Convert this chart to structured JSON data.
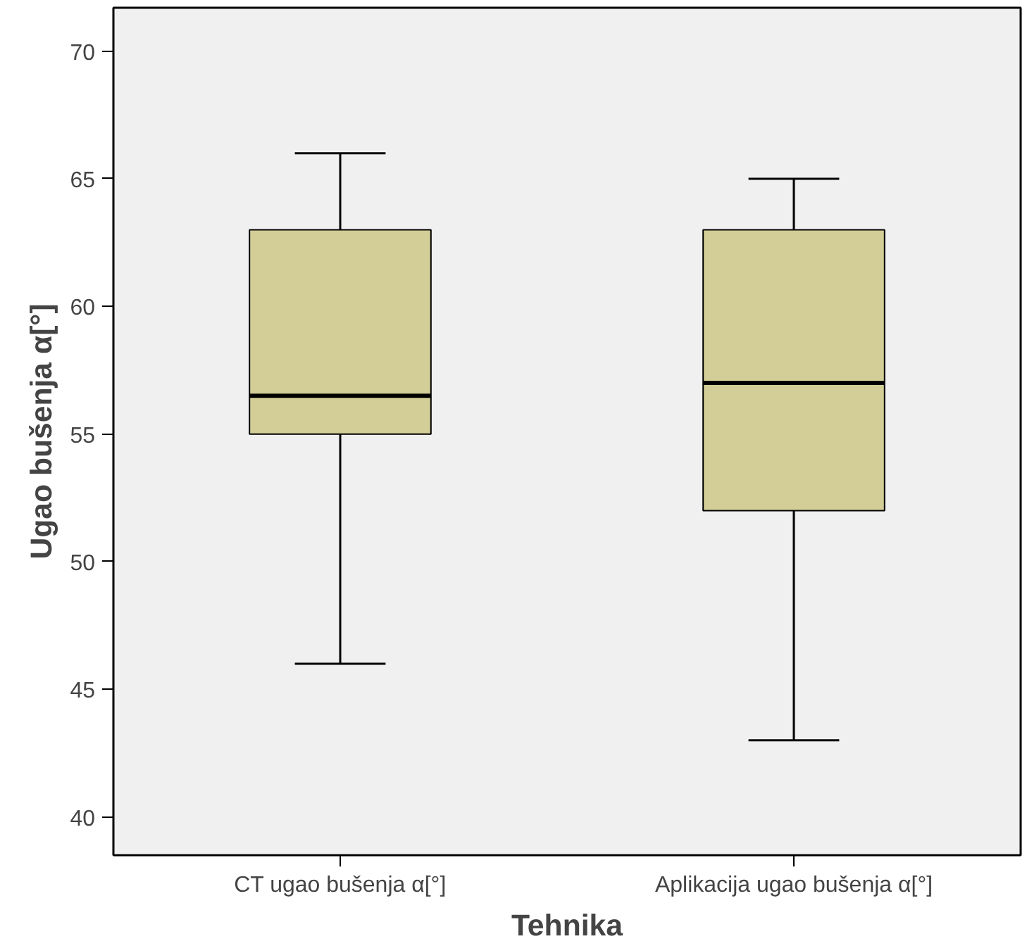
{
  "chart_data": {
    "type": "box",
    "xlabel": "Tehnika",
    "ylabel": "Ugao bušenja α[°]",
    "categories": [
      "CT ugao bušenja α[°]",
      "Aplikacija ugao bušenja α[°]"
    ],
    "boxes": [
      {
        "low": 46,
        "q1": 55,
        "median": 56.5,
        "q3": 63,
        "high": 66
      },
      {
        "low": 43,
        "q1": 52,
        "median": 57,
        "q3": 63,
        "high": 65
      }
    ],
    "color": "#d3ce97",
    "ylim": [
      38.5,
      71.7
    ],
    "yticks": [
      40,
      45,
      50,
      55,
      60,
      65,
      70
    ],
    "grid": false
  }
}
